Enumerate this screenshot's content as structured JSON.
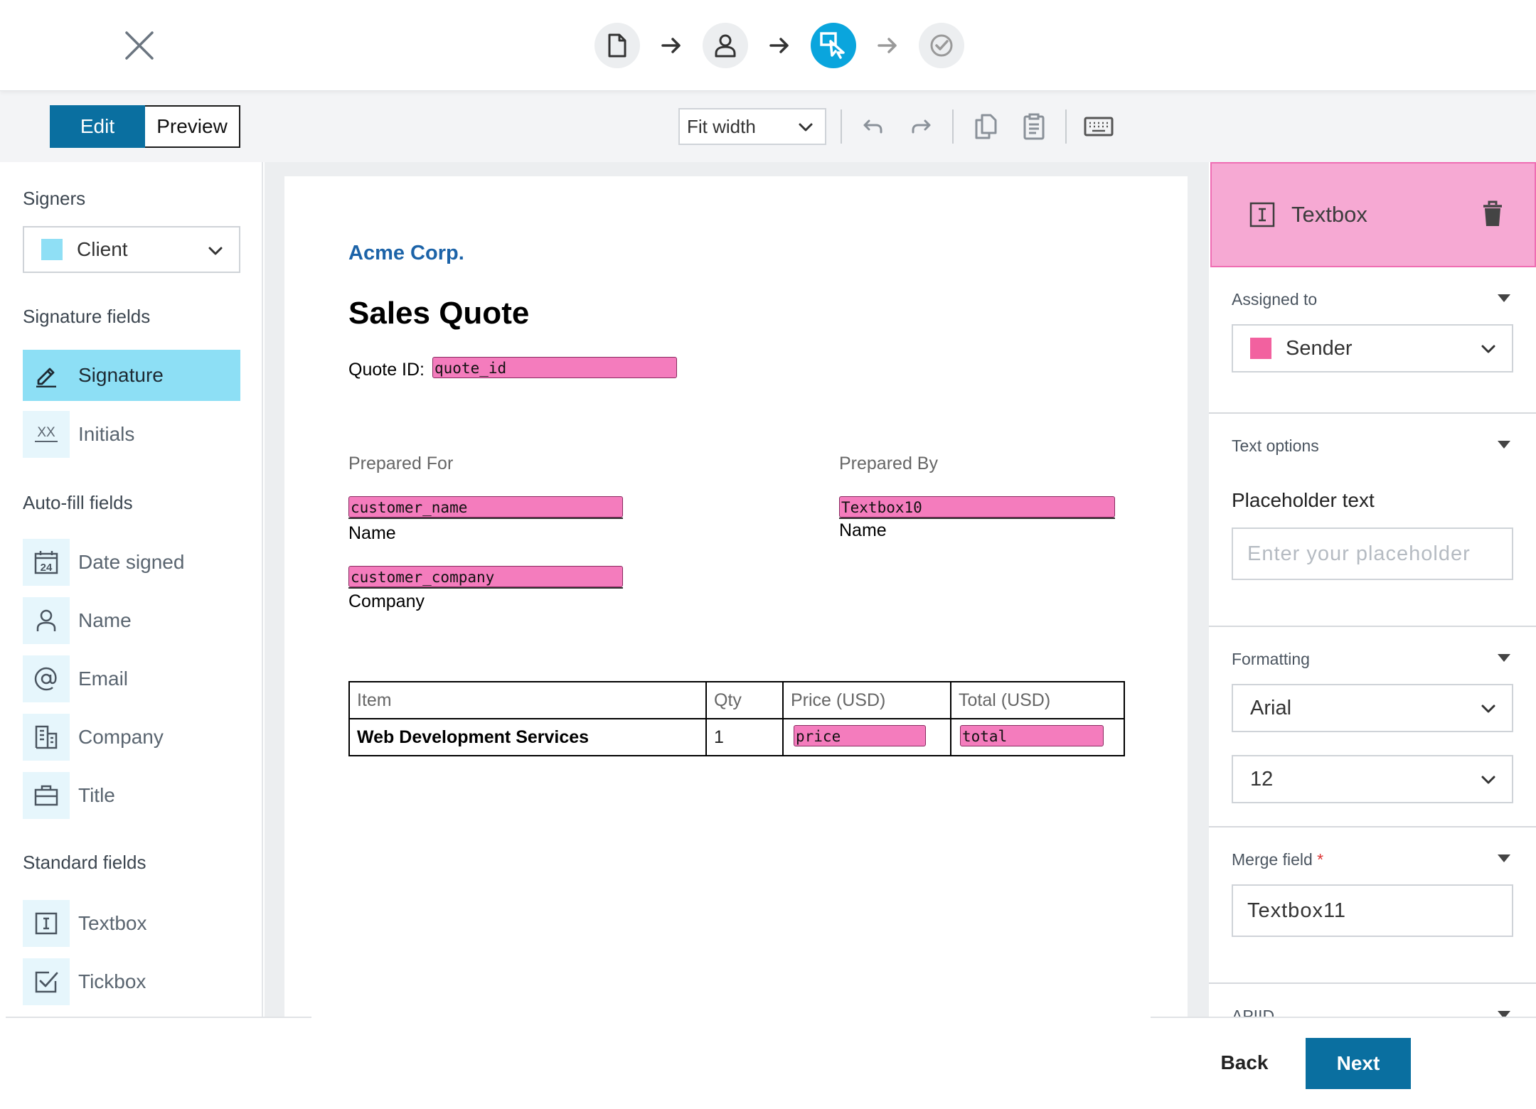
{
  "stepper": {
    "steps": [
      {
        "icon": "document-icon",
        "state": "done"
      },
      {
        "icon": "user-icon",
        "state": "done"
      },
      {
        "icon": "place-fields-icon",
        "state": "active"
      },
      {
        "icon": "check-circle-icon",
        "state": "pending"
      }
    ]
  },
  "toolbar": {
    "edit_label": "Edit",
    "preview_label": "Preview",
    "zoom_value": "Fit width"
  },
  "left": {
    "signers_heading": "Signers",
    "signer_selected": "Client",
    "signer_color": "#8fdff5",
    "signature_heading": "Signature fields",
    "signature_fields": [
      "Signature",
      "Initials"
    ],
    "autofill_heading": "Auto-fill fields",
    "autofill_fields": [
      "Date signed",
      "Name",
      "Email",
      "Company",
      "Title"
    ],
    "standard_heading": "Standard fields",
    "standard_fields": [
      "Textbox",
      "Tickbox"
    ],
    "initials_icon_text": "XX",
    "date_icon_text": "24"
  },
  "document": {
    "company": "Acme Corp.",
    "title": "Sales Quote",
    "quote_id_label": "Quote ID:",
    "quote_id_field": "quote_id",
    "prepared_for": "Prepared For",
    "prepared_by": "Prepared By",
    "customer_name_field": "customer_name",
    "name_label": "Name",
    "customer_company_field": "customer_company",
    "company_label": "Company",
    "sender_name_field": "Textbox10",
    "sender_name_label": "Name",
    "table": {
      "headers": [
        "Item",
        "Qty",
        "Price (USD)",
        "Total (USD)"
      ],
      "row": {
        "item": "Web Development Services",
        "qty": "1",
        "price_field": "price",
        "total_field": "total"
      }
    }
  },
  "right": {
    "title": "Textbox",
    "assigned_heading": "Assigned to",
    "assigned_value": "Sender",
    "assigned_color": "#f2619f",
    "text_options_heading": "Text options",
    "placeholder_label": "Placeholder text",
    "placeholder_hint": "Enter your placeholder",
    "formatting_heading": "Formatting",
    "font_value": "Arial",
    "size_value": "12",
    "merge_heading": "Merge field",
    "merge_required": "*",
    "merge_value": "Textbox11",
    "next_section_heading": "APIID"
  },
  "footer": {
    "back_label": "Back",
    "next_label": "Next"
  },
  "colors": {
    "accent": "#0a6fa0",
    "step_active": "#0aa5dd",
    "field_pink": "#f47cbd",
    "header_pink": "#f6a9d3"
  }
}
